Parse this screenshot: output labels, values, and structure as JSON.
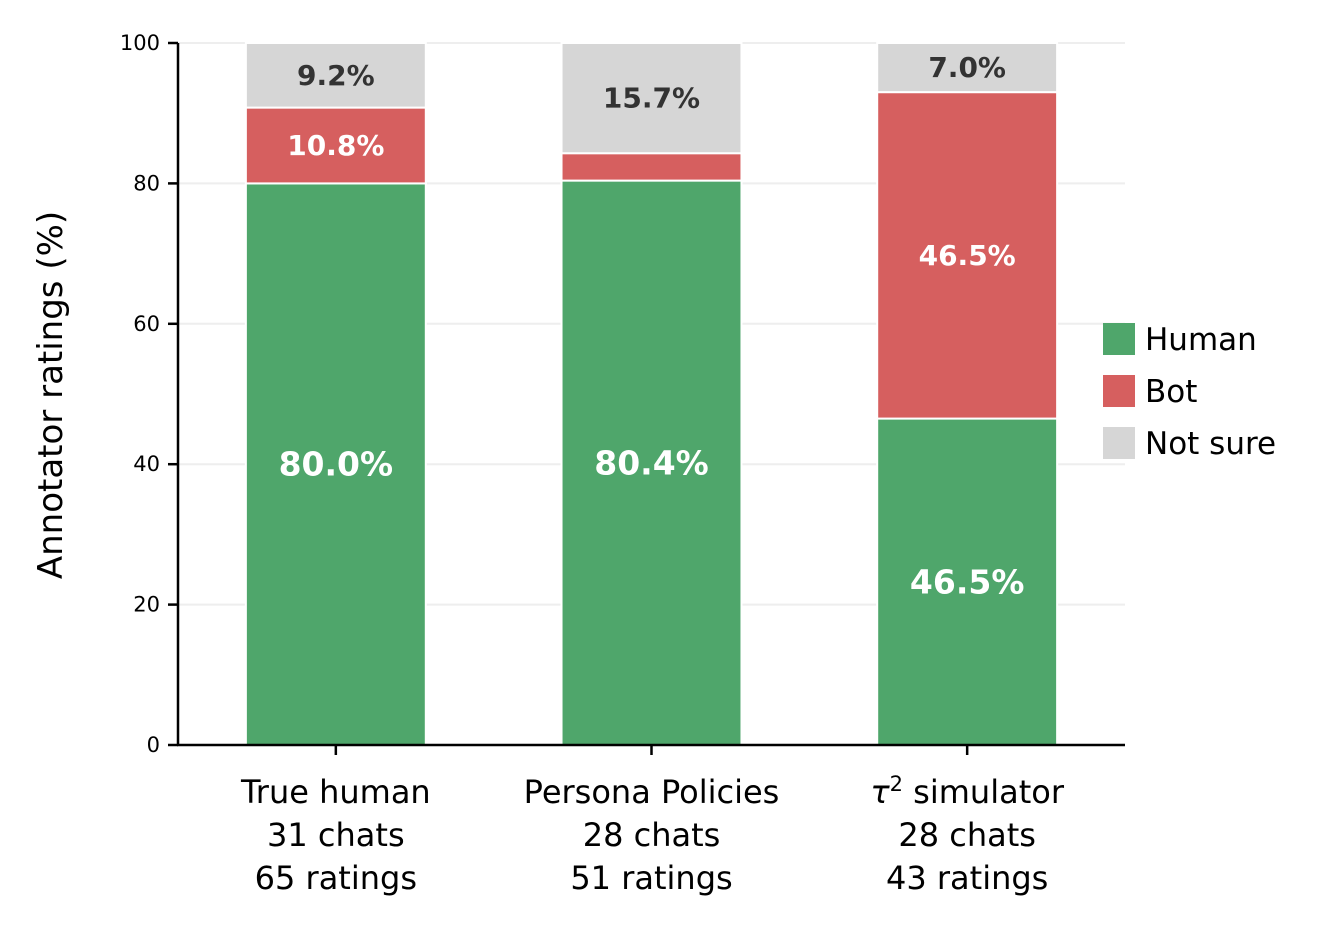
{
  "chart_data": {
    "type": "bar",
    "stacked": true,
    "title": "",
    "xlabel": "",
    "ylabel": "Annotator ratings (%)",
    "ylim": [
      0,
      100
    ],
    "yticks": [
      0,
      20,
      40,
      60,
      80,
      100
    ],
    "grid": "horizontal",
    "legend_position": "right",
    "categories": [
      {
        "name": "True human",
        "name_sup": "",
        "name_rest": "",
        "chats": "31 chats",
        "ratings": "65 ratings"
      },
      {
        "name": "Persona Policies",
        "name_sup": "",
        "name_rest": "",
        "chats": "28 chats",
        "ratings": "51 ratings"
      },
      {
        "name": "τ",
        "name_sup": "2",
        "name_rest": " simulator",
        "chats": "28 chats",
        "ratings": "43 ratings"
      }
    ],
    "series": [
      {
        "name": "Human",
        "color": "#4fa66b",
        "label_color": "#ffffff",
        "values": [
          80.0,
          80.4,
          46.5
        ],
        "labels": [
          "80.0%",
          "80.4%",
          "46.5%"
        ]
      },
      {
        "name": "Bot",
        "color": "#d65f5f",
        "label_color": "#ffffff",
        "values": [
          10.8,
          3.9,
          46.5
        ],
        "labels": [
          "10.8%",
          "",
          "46.5%"
        ]
      },
      {
        "name": "Not sure",
        "color": "#d6d6d6",
        "label_color": "#333333",
        "values": [
          9.2,
          15.7,
          7.0
        ],
        "labels": [
          "9.2%",
          "15.7%",
          "7.0%"
        ]
      }
    ]
  }
}
